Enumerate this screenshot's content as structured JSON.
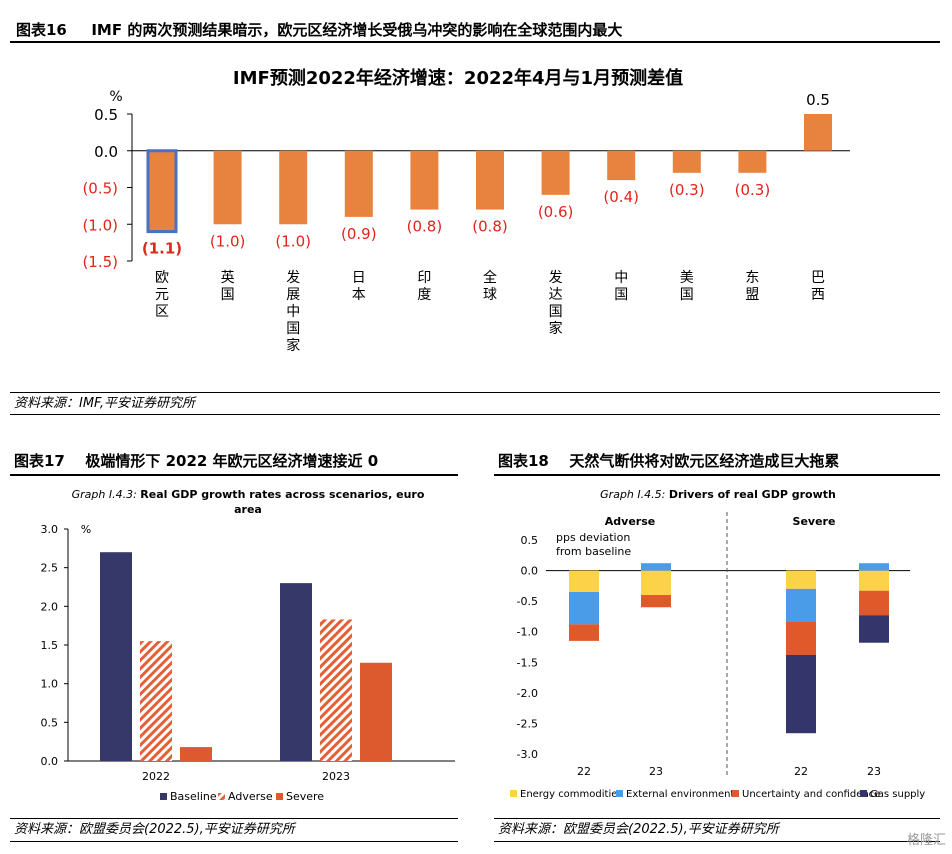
{
  "fig16": {
    "header_num": "图表16",
    "header_title": "IMF 的两次预测结果暗示，欧元区经济增长受俄乌冲突的影响在全球范围内最大",
    "source": "资料来源：IMF,平安证券研究所"
  },
  "fig17": {
    "header_num": "图表17",
    "header_title": "极端情形下 2022 年欧元区经济增速接近 0",
    "source": "资料来源：欧盟委员会(2022.5),平安证券研究所"
  },
  "fig18": {
    "header_num": "图表18",
    "header_title": "天然气断供将对欧元区经济造成巨大拖累",
    "source": "资料来源：欧盟委员会(2022.5),平安证券研究所"
  },
  "watermark": "格隆汇",
  "chart_data": [
    {
      "id": "fig16",
      "type": "bar",
      "title": "IMF预测2022年经济增速：2022年4月与1月预测差值",
      "ylabel": "%",
      "ylim": [
        -1.5,
        0.5
      ],
      "yticks": [
        0.5,
        0.0,
        -0.5,
        -1.0,
        -1.5
      ],
      "ytick_labels": [
        "0.5",
        "0.0",
        "(0.5)",
        "(1.0)",
        "(1.5)"
      ],
      "categories": [
        "欧元区",
        "英国",
        "发展中国家",
        "日本",
        "印度",
        "全球",
        "发达国家",
        "中国",
        "美国",
        "东盟",
        "巴西"
      ],
      "values": [
        -1.1,
        -1.0,
        -1.0,
        -0.9,
        -0.8,
        -0.8,
        -0.6,
        -0.4,
        -0.3,
        -0.3,
        0.5
      ],
      "data_labels": [
        "(1.1)",
        "(1.0)",
        "(1.0)",
        "(0.9)",
        "(0.8)",
        "(0.8)",
        "(0.6)",
        "(0.4)",
        "(0.3)",
        "(0.3)",
        "0.5"
      ],
      "bar_color": "#E8823F",
      "highlight_index": 0,
      "highlight_color": "#4472C4",
      "negative_label_color": "#E0251B",
      "positive_label_color": "#000000",
      "grid": false
    },
    {
      "id": "fig17",
      "type": "bar",
      "title": "Real GDP growth rates across scenarios, euro area",
      "title_prefix": "Graph I.4.3:",
      "ylabel": "%",
      "ylim": [
        0,
        3.0
      ],
      "yticks": [
        3.0,
        2.5,
        2.0,
        1.5,
        1.0,
        0.5,
        0.0
      ],
      "ytick_labels": [
        "3.0",
        "2.5",
        "2.0",
        "1.5",
        "1.0",
        "0.5",
        "0.0"
      ],
      "categories": [
        "2022",
        "2023"
      ],
      "series": [
        {
          "name": "Baseline",
          "values": [
            2.7,
            2.3
          ],
          "color": "#353869",
          "pattern": "solid"
        },
        {
          "name": "Adverse",
          "values": [
            1.55,
            1.83
          ],
          "color": "#E45F35",
          "pattern": "hatch"
        },
        {
          "name": "Severe",
          "values": [
            0.18,
            1.27
          ],
          "color": "#DD5A2E",
          "pattern": "solid"
        }
      ],
      "legend": "bottom",
      "grid": false
    },
    {
      "id": "fig18",
      "type": "bar",
      "stacked": true,
      "title": "Drivers of real GDP growth",
      "title_prefix": "Graph I.4.5:",
      "annotation": [
        "pps deviation",
        "from baseline"
      ],
      "panels": [
        "Adverse",
        "Severe"
      ],
      "ylim": [
        -3.0,
        0.5
      ],
      "yticks": [
        0.5,
        0.0,
        -0.5,
        -1.0,
        -1.5,
        -2.0,
        -2.5,
        -3.0
      ],
      "ytick_labels": [
        "0.5",
        "0.0",
        "-0.5",
        "-1.0",
        "-1.5",
        "-2.0",
        "-2.5",
        "-3.0"
      ],
      "categories": [
        "22",
        "23",
        "22",
        "23"
      ],
      "series": [
        {
          "name": "Energy commodities",
          "values": [
            -0.35,
            -0.4,
            -0.3,
            -0.33
          ],
          "color": "#FBD248"
        },
        {
          "name": "External environment",
          "values": [
            -0.53,
            0.12,
            -0.53,
            0.12
          ],
          "color": "#4A9BE8"
        },
        {
          "name": "Uncertainty and confidence",
          "values": [
            -0.27,
            -0.2,
            -0.55,
            -0.4
          ],
          "color": "#E0592B"
        },
        {
          "name": "Gas supply",
          "values": [
            0,
            0,
            -1.28,
            -0.45
          ],
          "color": "#33356B"
        }
      ],
      "legend": "bottom",
      "grid": false
    }
  ]
}
